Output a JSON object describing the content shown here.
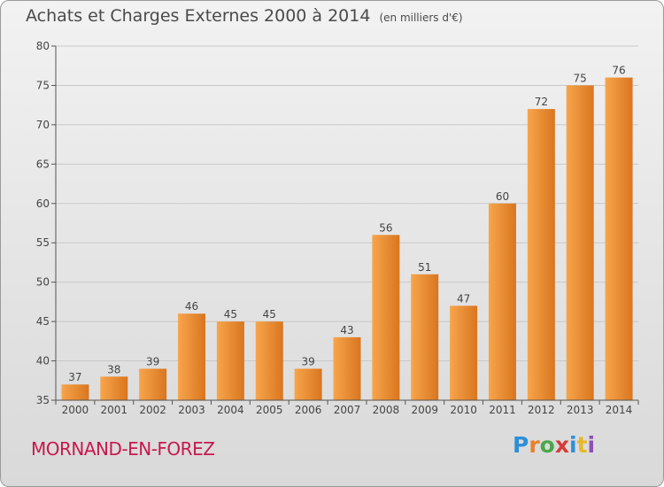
{
  "chart_data": {
    "type": "bar",
    "title": "Achats et Charges Externes 2000 à 2014",
    "subtitle": "(en milliers d'€)",
    "categories": [
      "2000",
      "2001",
      "2002",
      "2003",
      "2004",
      "2005",
      "2006",
      "2007",
      "2008",
      "2009",
      "2010",
      "2011",
      "2012",
      "2013",
      "2014"
    ],
    "values": [
      37,
      38,
      39,
      46,
      45,
      45,
      39,
      43,
      56,
      51,
      47,
      60,
      72,
      75,
      76
    ],
    "ylim": [
      35,
      80
    ],
    "yticks": [
      35,
      40,
      45,
      50,
      55,
      60,
      65,
      70,
      75,
      80
    ],
    "xlabel": "",
    "ylabel": "",
    "grid": true,
    "colors": {
      "bar_light": "#f7a54c",
      "bar_dark": "#d9761f",
      "axis": "#555555",
      "grid": "#c8c8c8"
    }
  },
  "footer": {
    "place": "MORNAND-EN-FOREZ",
    "brand": "Proxiti",
    "brand_letters": [
      {
        "ch": "P",
        "color": "#2f8fd8"
      },
      {
        "ch": "r",
        "color": "#e8812a"
      },
      {
        "ch": "o",
        "color": "#4aa84a"
      },
      {
        "ch": "x",
        "color": "#d63a3a"
      },
      {
        "ch": "i",
        "color": "#2f8fd8"
      },
      {
        "ch": "t",
        "color": "#e8b82a"
      },
      {
        "ch": "i",
        "color": "#8e4fb5"
      }
    ]
  }
}
